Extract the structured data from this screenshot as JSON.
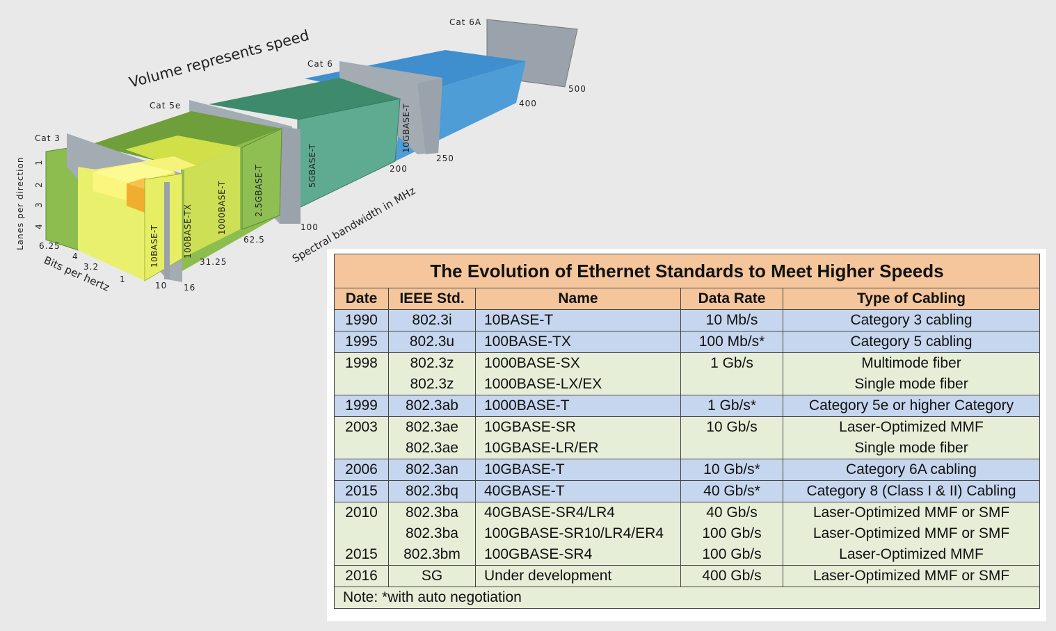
{
  "diagram": {
    "title": "Volume represents speed",
    "y_axis_label": "Lanes per direction",
    "y_ticks": [
      "1",
      "2",
      "3",
      "4"
    ],
    "bits_axis_label": "Bits per hertz",
    "bits_ticks": [
      "6.25",
      "4",
      "3.2",
      "1"
    ],
    "freq_axis_label": "Spectral bandwidth in MHz",
    "freq_ticks": [
      "10",
      "16",
      "31.25",
      "62.5",
      "100",
      "200",
      "250",
      "400",
      "500"
    ],
    "categories": [
      "Cat 3",
      "Cat 5e",
      "Cat 6",
      "Cat 6A"
    ],
    "box_labels": [
      "10BASE-T",
      "100BASE-TX",
      "1000BASE-T",
      "2.5GBASE-T",
      "5GBASE-T",
      "10GBASE-T"
    ],
    "colors": {
      "yellow": "#e7ef6a",
      "lime": "#a8cc4f",
      "green": "#7bb148",
      "teal": "#4e9e84",
      "blue": "#4b98cf",
      "gray": "#9aa3ab",
      "orange": "#f1b23b"
    }
  },
  "table": {
    "title": "The Evolution of Ethernet Standards to Meet Higher Speeds",
    "headers": [
      "Date",
      "IEEE Std.",
      "Name",
      "Data Rate",
      "Type of Cabling"
    ],
    "rows": [
      {
        "date": "1990",
        "std": "802.3i",
        "name": "10BASE-T",
        "rate": "10 Mb/s",
        "cabling": "Category 3 cabling"
      },
      {
        "date": "1995",
        "std": "802.3u",
        "name": "100BASE-TX",
        "rate": "100 Mb/s*",
        "cabling": "Category 5 cabling"
      },
      {
        "date": "1998",
        "std": "802.3z",
        "name": "1000BASE-SX",
        "rate": "1 Gb/s",
        "cabling": "Multimode fiber",
        "std2": "802.3z",
        "name2": "1000BASE-LX/EX",
        "cabling2": "Single mode fiber"
      },
      {
        "date": "1999",
        "std": "802.3ab",
        "name": "1000BASE-T",
        "rate": "1 Gb/s*",
        "cabling": "Category 5e or higher Category"
      },
      {
        "date": "2003",
        "std": "802.3ae",
        "name": "10GBASE-SR",
        "rate": "10 Gb/s",
        "cabling": "Laser-Optimized MMF",
        "std2": "802.3ae",
        "name2": "10GBASE-LR/ER",
        "cabling2": "Single mode fiber"
      },
      {
        "date": "2006",
        "std": "802.3an",
        "name": "10GBASE-T",
        "rate": "10 Gb/s*",
        "cabling": "Category 6A cabling"
      },
      {
        "date": "2015",
        "std": "802.3bq",
        "name": "40GBASE-T",
        "rate": "40 Gb/s*",
        "cabling": "Category 8 (Class I & II) Cabling"
      },
      {
        "date": "2010",
        "std": "802.3ba",
        "name": "40GBASE-SR4/LR4",
        "rate": "40 Gb/s",
        "cabling": "Laser-Optimized MMF or SMF",
        "std2": "802.3ba",
        "name2": "100GBASE-SR10/LR4/ER4",
        "rate2": "100 Gb/s",
        "cabling2": "Laser-Optimized MMF or SMF",
        "date3": "2015",
        "std3": "802.3bm",
        "name3": "100GBASE-SR4",
        "rate3": "100 Gb/s",
        "cabling3": "Laser-Optimized MMF"
      },
      {
        "date": "2016",
        "std": "SG",
        "name": "Under development",
        "rate": "400 Gb/s",
        "cabling": "Laser-Optimized MMF or SMF"
      }
    ],
    "note": "Note:  *with auto negotiation"
  }
}
